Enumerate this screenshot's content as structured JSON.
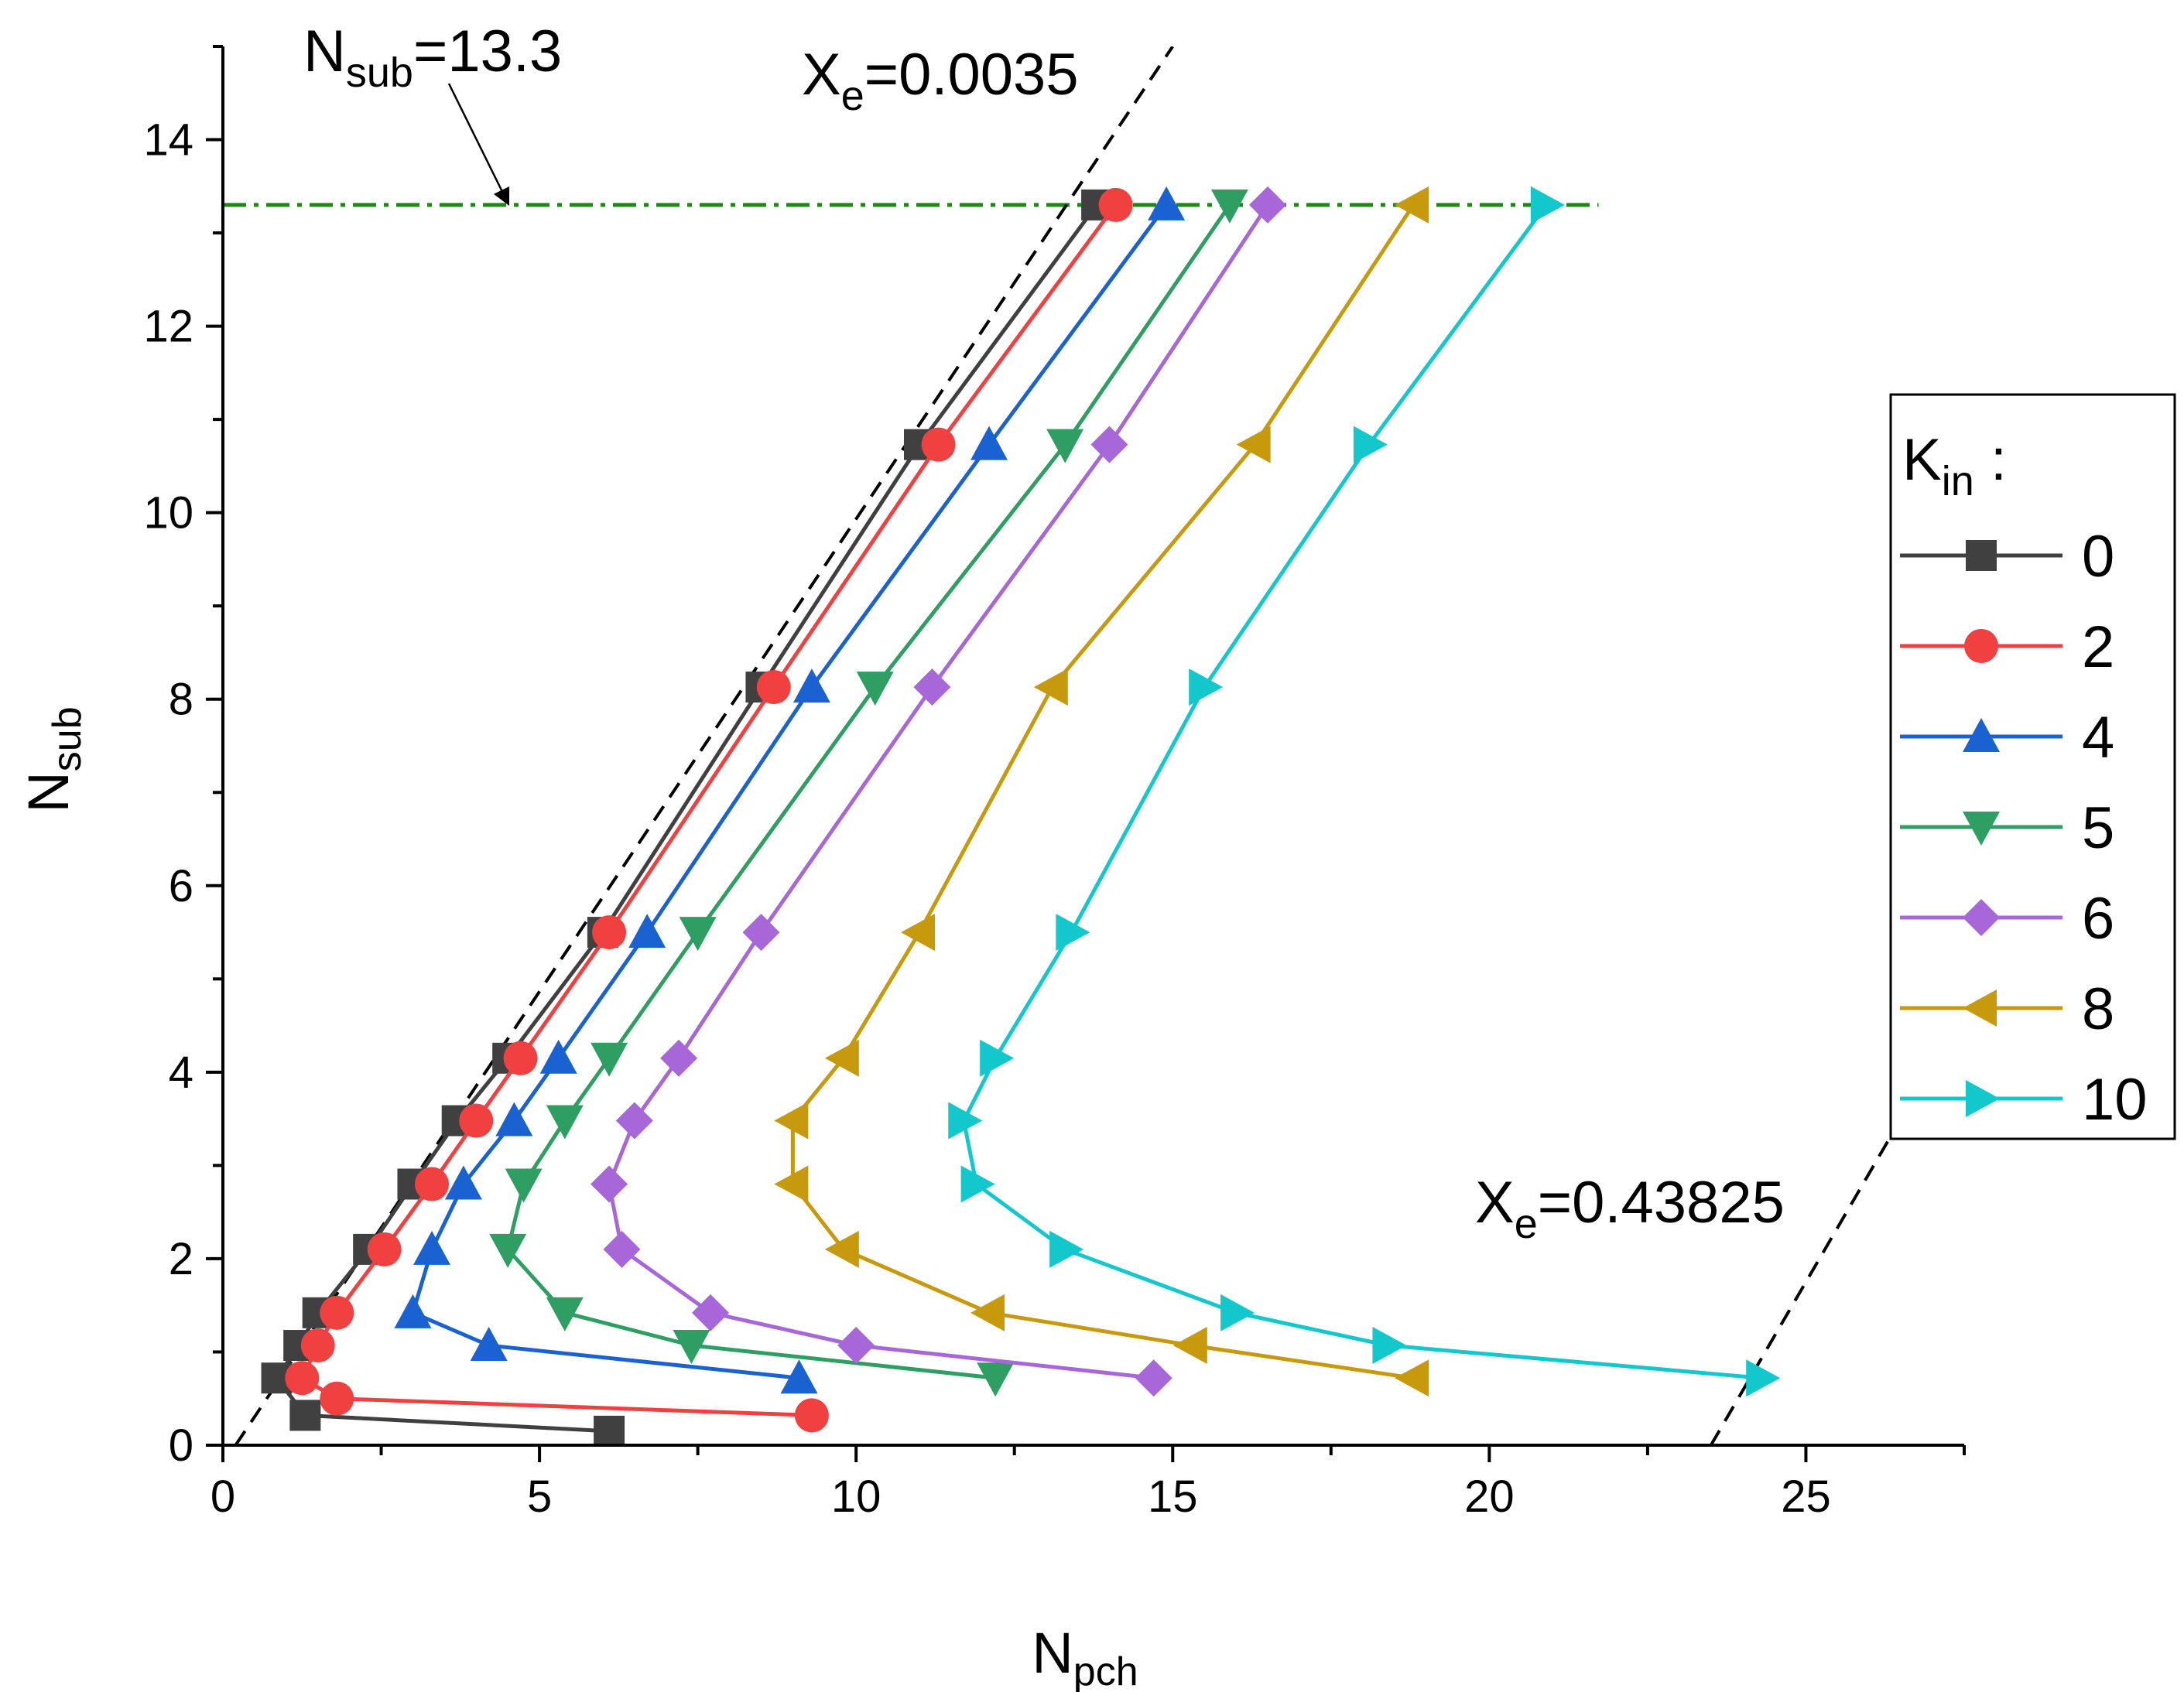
{
  "chart_data": {
    "type": "line",
    "xlabel": {
      "main": "N",
      "sub": "pch"
    },
    "ylabel": {
      "main": "N",
      "sub": "sub"
    },
    "xlim": [
      0,
      27.5
    ],
    "ylim": [
      0,
      15
    ],
    "xticks": [
      0,
      5,
      10,
      15,
      20,
      25
    ],
    "yticks": [
      0,
      2,
      4,
      6,
      8,
      10,
      12,
      14
    ],
    "grid": false,
    "legend": {
      "title_main": "K",
      "title_sub": "in",
      "title_suffix": " :",
      "placement": "right"
    },
    "series": [
      {
        "name": "0",
        "color": "#404040",
        "marker": "square",
        "points": [
          [
            6.1,
            0.15
          ],
          [
            1.3,
            0.32
          ],
          [
            0.85,
            0.72
          ],
          [
            1.2,
            1.07
          ],
          [
            1.5,
            1.42
          ],
          [
            2.3,
            2.1
          ],
          [
            3.0,
            2.8
          ],
          [
            3.7,
            3.48
          ],
          [
            4.5,
            4.15
          ],
          [
            6.0,
            5.5
          ],
          [
            8.5,
            8.13
          ],
          [
            11.0,
            10.73
          ],
          [
            13.8,
            13.3
          ]
        ]
      },
      {
        "name": "2",
        "color": "#f04040",
        "marker": "circle",
        "points": [
          [
            9.3,
            0.32
          ],
          [
            1.8,
            0.5
          ],
          [
            1.25,
            0.72
          ],
          [
            1.5,
            1.07
          ],
          [
            1.8,
            1.42
          ],
          [
            2.55,
            2.1
          ],
          [
            3.3,
            2.8
          ],
          [
            4.0,
            3.48
          ],
          [
            4.7,
            4.15
          ],
          [
            6.1,
            5.5
          ],
          [
            8.7,
            8.13
          ],
          [
            11.3,
            10.73
          ],
          [
            14.1,
            13.3
          ]
        ]
      },
      {
        "name": "4",
        "color": "#1a62d2",
        "marker": "triangle-up",
        "points": [
          [
            9.1,
            0.72
          ],
          [
            4.2,
            1.07
          ],
          [
            3.0,
            1.42
          ],
          [
            3.3,
            2.1
          ],
          [
            3.8,
            2.8
          ],
          [
            4.6,
            3.48
          ],
          [
            5.3,
            4.15
          ],
          [
            6.7,
            5.5
          ],
          [
            9.3,
            8.13
          ],
          [
            12.1,
            10.73
          ],
          [
            14.9,
            13.3
          ]
        ]
      },
      {
        "name": "5",
        "color": "#2e9e62",
        "marker": "triangle-down",
        "points": [
          [
            12.2,
            0.72
          ],
          [
            7.4,
            1.07
          ],
          [
            5.4,
            1.42
          ],
          [
            4.5,
            2.1
          ],
          [
            4.75,
            2.8
          ],
          [
            5.4,
            3.48
          ],
          [
            6.1,
            4.15
          ],
          [
            7.5,
            5.5
          ],
          [
            10.3,
            8.13
          ],
          [
            13.3,
            10.73
          ],
          [
            15.9,
            13.3
          ]
        ]
      },
      {
        "name": "6",
        "color": "#a767d8",
        "marker": "diamond",
        "points": [
          [
            14.7,
            0.72
          ],
          [
            10.0,
            1.07
          ],
          [
            7.7,
            1.42
          ],
          [
            6.3,
            2.1
          ],
          [
            6.1,
            2.8
          ],
          [
            6.5,
            3.48
          ],
          [
            7.2,
            4.15
          ],
          [
            8.5,
            5.5
          ],
          [
            11.2,
            8.13
          ],
          [
            14.0,
            10.73
          ],
          [
            16.5,
            13.3
          ]
        ]
      },
      {
        "name": "8",
        "color": "#c79a0e",
        "marker": "triangle-left",
        "points": [
          [
            18.8,
            0.72
          ],
          [
            15.3,
            1.07
          ],
          [
            12.1,
            1.42
          ],
          [
            9.8,
            2.1
          ],
          [
            9.0,
            2.8
          ],
          [
            9.0,
            3.48
          ],
          [
            9.8,
            4.15
          ],
          [
            11.0,
            5.5
          ],
          [
            13.1,
            8.13
          ],
          [
            16.3,
            10.73
          ],
          [
            18.8,
            13.3
          ]
        ]
      },
      {
        "name": "10",
        "color": "#12c8cc",
        "marker": "triangle-right",
        "points": [
          [
            24.3,
            0.72
          ],
          [
            18.4,
            1.07
          ],
          [
            16.0,
            1.42
          ],
          [
            13.3,
            2.1
          ],
          [
            11.9,
            2.8
          ],
          [
            11.7,
            3.48
          ],
          [
            12.2,
            4.15
          ],
          [
            13.4,
            5.5
          ],
          [
            15.5,
            8.13
          ],
          [
            18.1,
            10.73
          ],
          [
            20.9,
            13.3
          ]
        ]
      }
    ],
    "reference_lines": [
      {
        "name": "N_sub limit",
        "type": "horizontal",
        "y": 13.3,
        "color": "#1a8a12",
        "style": "dash-dot"
      },
      {
        "name": "Xe low",
        "type": "dashed-line",
        "from": [
          0.2,
          0
        ],
        "to": [
          15.0,
          15
        ],
        "color": "#000000"
      },
      {
        "name": "Xe high",
        "type": "dashed-line",
        "from": [
          23.5,
          0
        ],
        "to": [
          26.5,
          3.5
        ],
        "color": "#000000"
      }
    ],
    "annotations": [
      {
        "id": "nsub",
        "main": "N",
        "sub": "sub",
        "value": "=13.3",
        "arrow_to": [
          4.6,
          13.3
        ]
      },
      {
        "id": "xe-low",
        "main": "X",
        "sub": "e",
        "value": "=0.0035"
      },
      {
        "id": "xe-high",
        "main": "X",
        "sub": "e",
        "value": "=0.43825"
      }
    ]
  }
}
